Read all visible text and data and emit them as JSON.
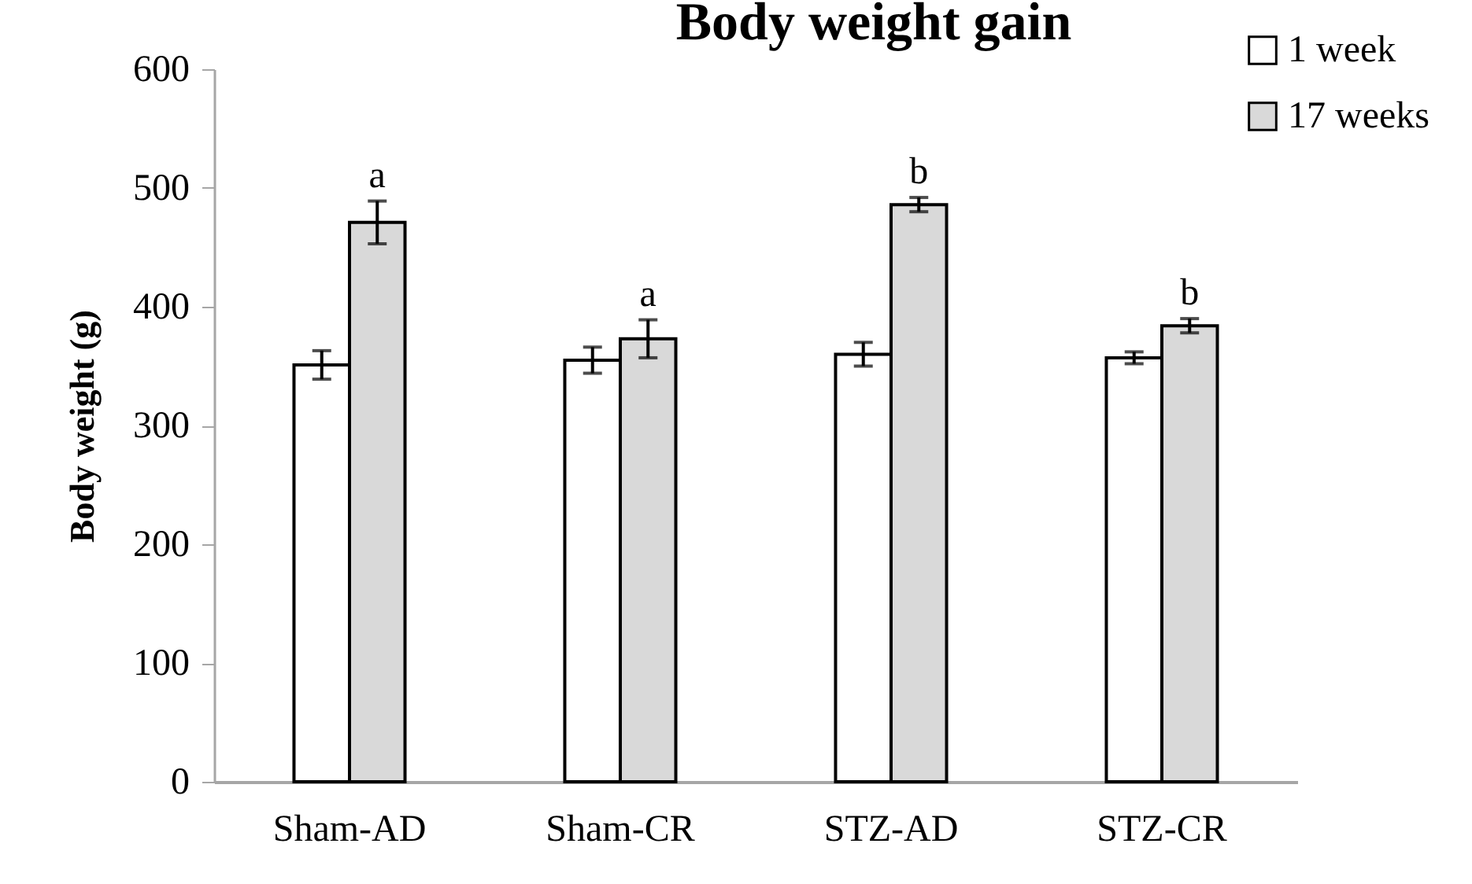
{
  "chart_data": {
    "type": "bar",
    "title": "Body weight gain",
    "ylabel": "Body weight (g)",
    "categories": [
      "Sham-AD",
      "Sham-CR",
      "STZ-AD",
      "STZ-CR"
    ],
    "series": [
      {
        "name": "1 week",
        "color": "#ffffff",
        "values": [
          351,
          355,
          360,
          357
        ],
        "errors": [
          12,
          11,
          10,
          5
        ]
      },
      {
        "name": "17 weeks",
        "color": "#d9d9d9",
        "values": [
          471,
          373,
          486,
          384
        ],
        "errors": [
          18,
          16,
          6,
          6
        ]
      }
    ],
    "ylim": [
      0,
      600
    ],
    "yticks": [
      0,
      100,
      200,
      300,
      400,
      500,
      600
    ],
    "annotations": [
      "a",
      "a",
      "b",
      "b"
    ],
    "legend": "top right",
    "grid": false
  }
}
